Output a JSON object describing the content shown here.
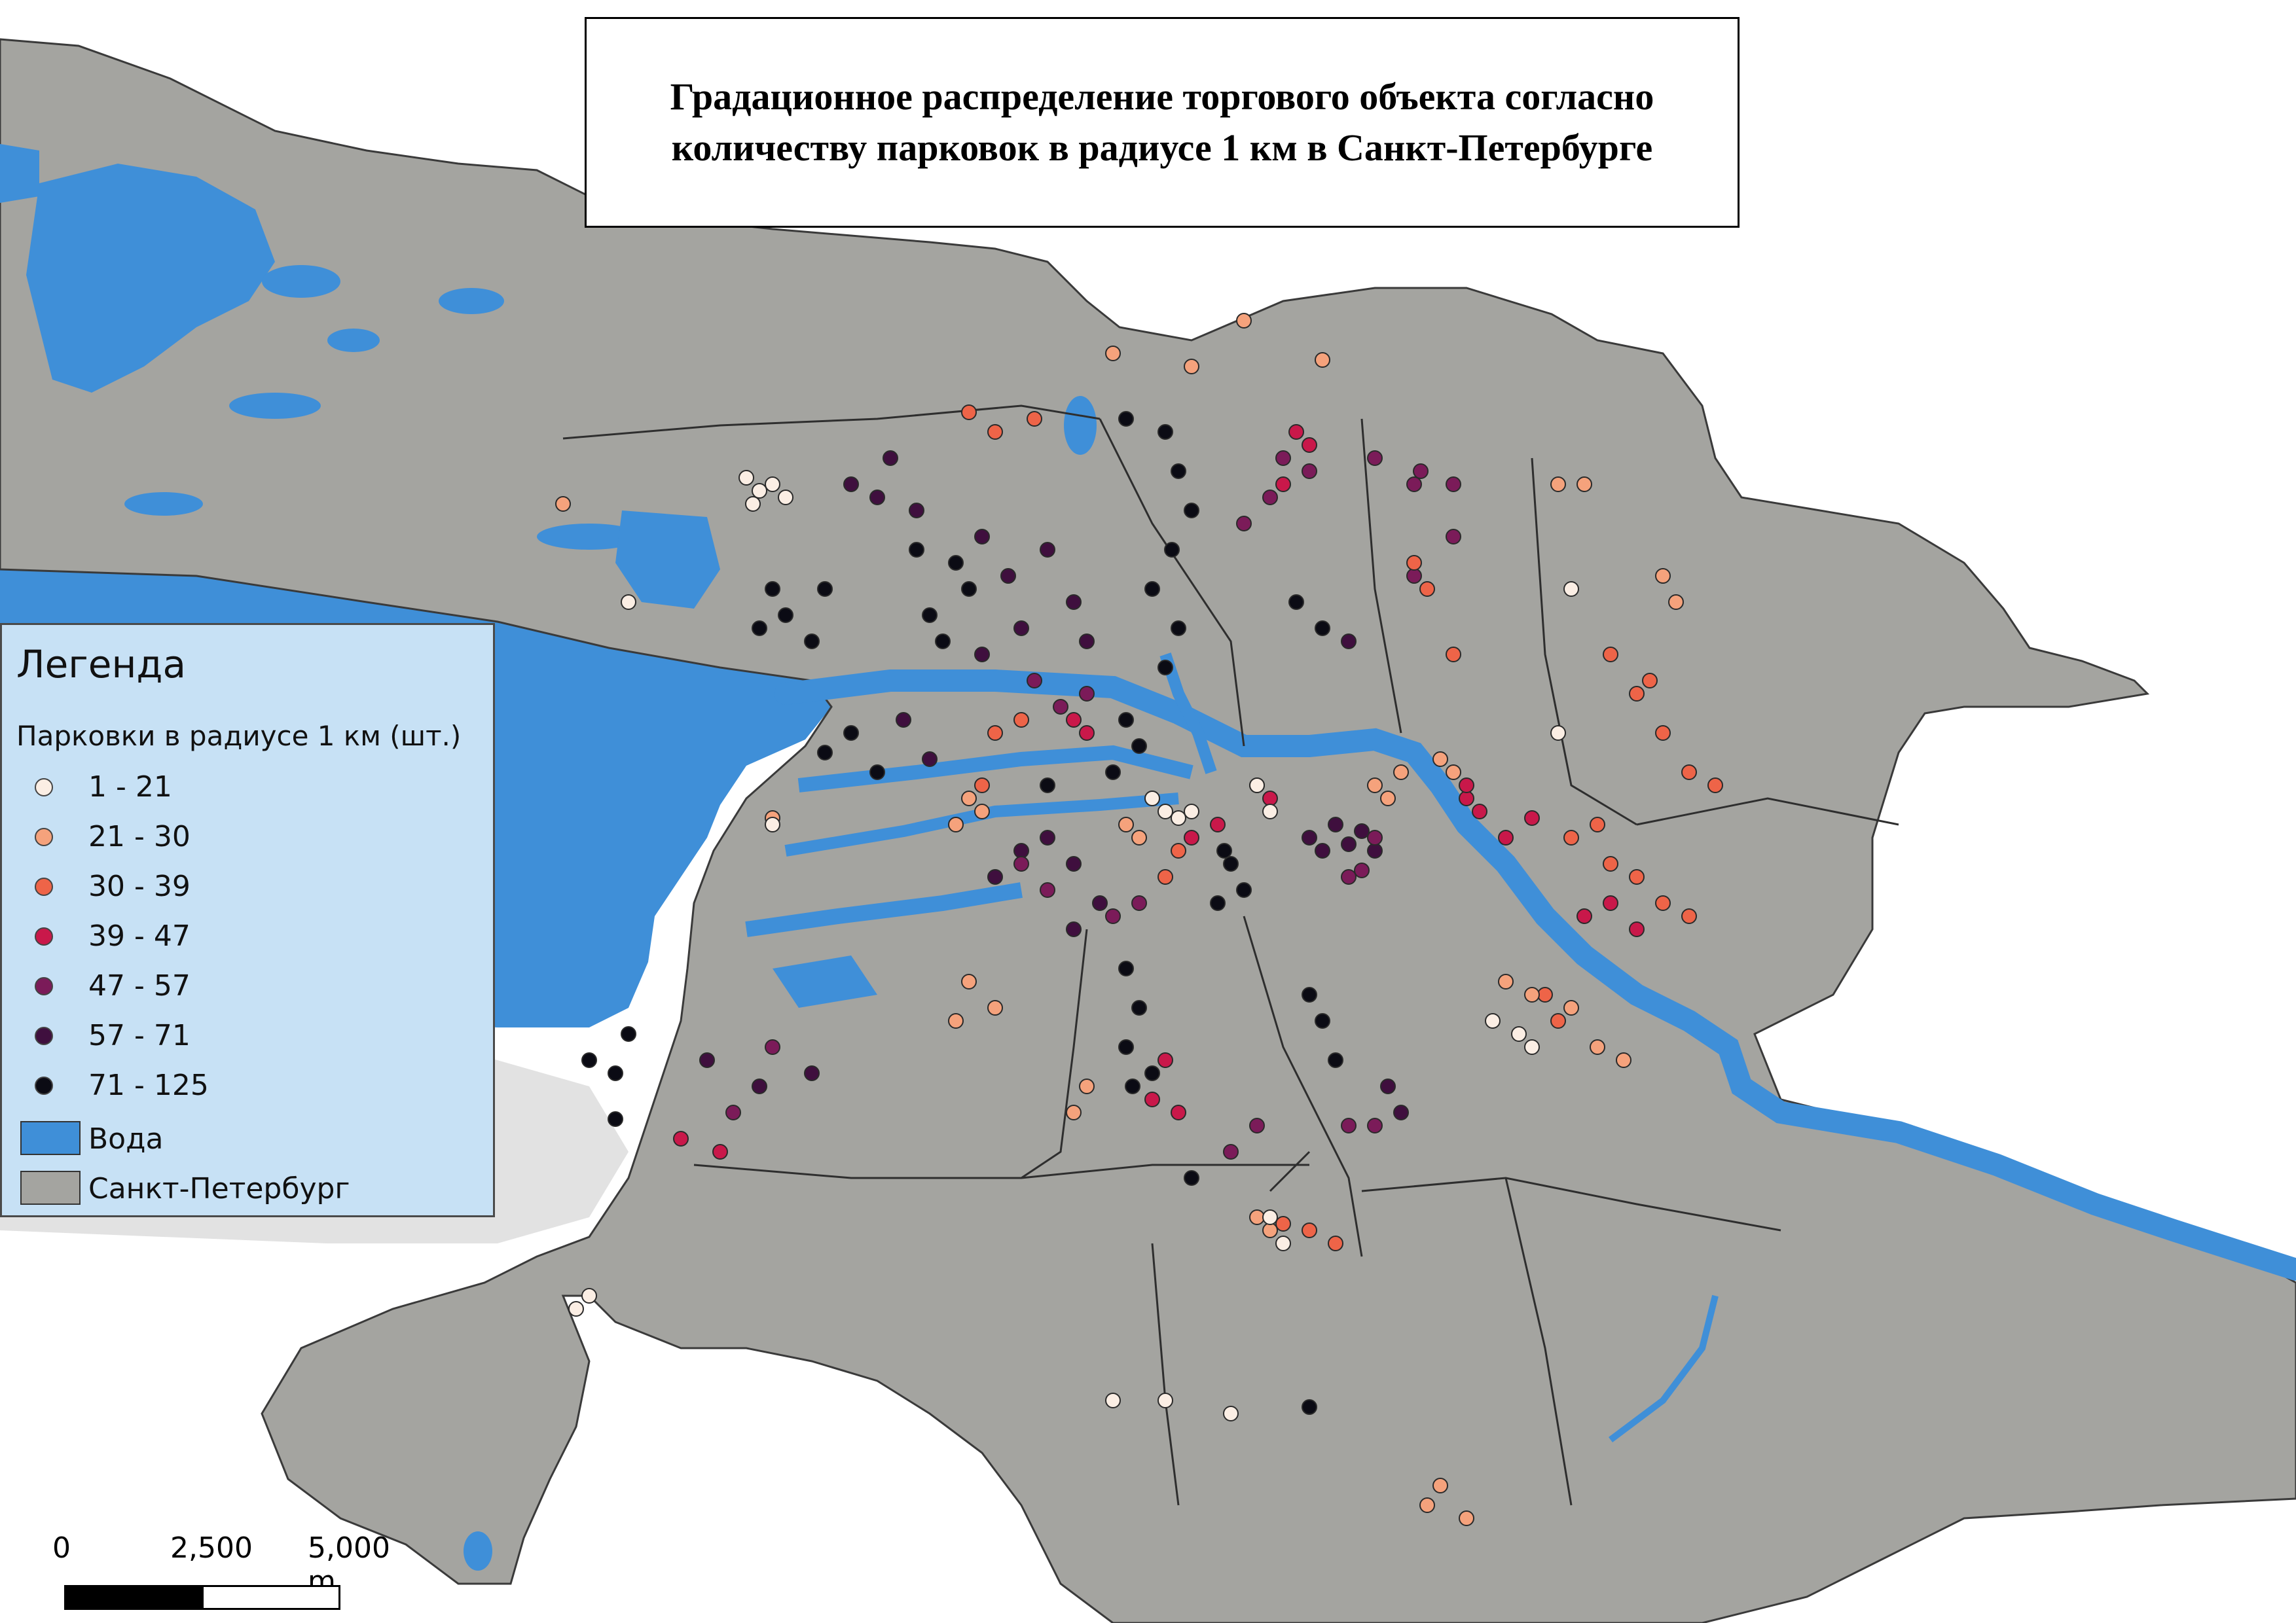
{
  "title": {
    "line1": "Градационное распределение торгового объекта согласно",
    "line2": "количеству парковок в радиусе 1 км в Санкт-Петербурге"
  },
  "legend": {
    "title": "Легенда",
    "subtitle": "Парковки в радиусе 1 км (шт.)",
    "classes": [
      {
        "label": "1 - 21",
        "color": "#fbeee4"
      },
      {
        "label": "21 - 30",
        "color": "#f5a27c"
      },
      {
        "label": "30 - 39",
        "color": "#ee6448"
      },
      {
        "label": "39 - 47",
        "color": "#c9184a"
      },
      {
        "label": "47 - 57",
        "color": "#7b1b59"
      },
      {
        "label": "57 - 71",
        "color": "#3f0f3e"
      },
      {
        "label": "71 - 125",
        "color": "#0b0b14"
      }
    ],
    "water": {
      "label": "Вода",
      "color": "#3f8fd8"
    },
    "city": {
      "label": "Санкт-Петербург",
      "color": "#a4a4a0"
    }
  },
  "scalebar": {
    "ticks": [
      "0",
      "2,500",
      "5,000 m"
    ]
  },
  "colors": {
    "land": "#a4a4a0",
    "water": "#3f8fd8",
    "background": "#ffffff",
    "outside": "#e2e2e2"
  }
}
